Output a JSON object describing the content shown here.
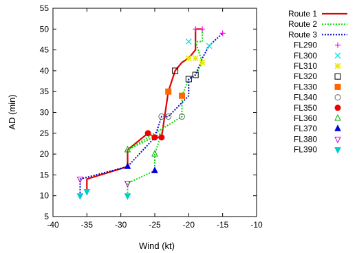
{
  "chart_data": {
    "type": "line",
    "xlabel": "Wind (kt)",
    "ylabel": "AD (min)",
    "xlim": [
      -40,
      -10
    ],
    "ylim": [
      5,
      55
    ],
    "xticks": [
      -40,
      -35,
      -30,
      -25,
      -20,
      -15,
      -10
    ],
    "yticks": [
      5,
      10,
      15,
      20,
      25,
      30,
      35,
      40,
      45,
      50,
      55
    ],
    "legend_position": "right",
    "series": [
      {
        "name": "Route 1",
        "color": "#dd0000",
        "dash": "solid",
        "points": [
          [
            -35,
            11
          ],
          [
            -35,
            14
          ],
          [
            -29,
            17
          ],
          [
            -29,
            21
          ],
          [
            -26,
            25
          ],
          [
            -25,
            24
          ],
          [
            -24,
            24
          ],
          [
            -23,
            35
          ],
          [
            -22,
            40
          ],
          [
            -21,
            42
          ],
          [
            -20,
            43
          ],
          [
            -19,
            45
          ],
          [
            -19,
            50
          ],
          [
            -18,
            50
          ]
        ]
      },
      {
        "name": "Route 2",
        "color": "#00dd00",
        "dash": "dotted",
        "points": [
          [
            -29,
            10
          ],
          [
            -29,
            13
          ],
          [
            -25,
            16
          ],
          [
            -25,
            20
          ],
          [
            -24,
            25
          ],
          [
            -29,
            21
          ],
          [
            -21,
            29
          ],
          [
            -21,
            34
          ],
          [
            -20,
            38
          ],
          [
            -19,
            39
          ],
          [
            -18,
            42
          ],
          [
            -19,
            47
          ],
          [
            -18,
            47
          ],
          [
            -18,
            50
          ]
        ]
      },
      {
        "name": "Route 3",
        "color": "#0000cc",
        "dash": "dotted",
        "points": [
          [
            -36,
            10
          ],
          [
            -36,
            14
          ],
          [
            -29,
            17
          ],
          [
            -25,
            24
          ],
          [
            -24,
            29
          ],
          [
            -23,
            29
          ],
          [
            -20,
            34
          ],
          [
            -20,
            38
          ],
          [
            -19,
            39
          ],
          [
            -18,
            43
          ],
          [
            -17,
            46
          ],
          [
            -15,
            49
          ]
        ]
      }
    ],
    "markers": [
      {
        "name": "FL290",
        "symbol": "plus",
        "color": "#ff00ff",
        "points": [
          [
            -18,
            50
          ],
          [
            -19,
            50
          ],
          [
            -15,
            49
          ]
        ]
      },
      {
        "name": "FL300",
        "symbol": "x",
        "color": "#00dddd",
        "points": [
          [
            -20,
            47
          ],
          [
            -17,
            46
          ]
        ]
      },
      {
        "name": "FL310",
        "symbol": "star",
        "color": "#e8e800",
        "points": [
          [
            -20,
            43
          ],
          [
            -19,
            43
          ],
          [
            -18,
            42
          ]
        ]
      },
      {
        "name": "FL320",
        "symbol": "square-open",
        "color": "#000000",
        "points": [
          [
            -22,
            40
          ],
          [
            -19,
            39
          ],
          [
            -20,
            38
          ]
        ]
      },
      {
        "name": "FL330",
        "symbol": "square-filled",
        "color": "#ff6600",
        "points": [
          [
            -23,
            35
          ],
          [
            -21,
            34
          ]
        ]
      },
      {
        "name": "FL340",
        "symbol": "circle-open",
        "color": "#666666",
        "points": [
          [
            -24,
            29
          ],
          [
            -23,
            29
          ],
          [
            -21,
            29
          ]
        ]
      },
      {
        "name": "FL350",
        "symbol": "circle-filled",
        "color": "#ee0000",
        "points": [
          [
            -26,
            25
          ],
          [
            -25,
            24
          ],
          [
            -24,
            24
          ]
        ]
      },
      {
        "name": "FL360",
        "symbol": "triangle-up-open",
        "color": "#00aa00",
        "points": [
          [
            -29,
            21
          ],
          [
            -25,
            20
          ]
        ]
      },
      {
        "name": "FL370",
        "symbol": "triangle-up-filled",
        "color": "#0000dd",
        "points": [
          [
            -29,
            17
          ],
          [
            -25,
            16
          ]
        ]
      },
      {
        "name": "FL380",
        "symbol": "triangle-down-open",
        "color": "#cc00cc",
        "points": [
          [
            -36,
            14
          ],
          [
            -29,
            13
          ]
        ]
      },
      {
        "name": "FL390",
        "symbol": "triangle-down-filled",
        "color": "#00cccc",
        "points": [
          [
            -36,
            10
          ],
          [
            -35,
            11
          ],
          [
            -29,
            10
          ]
        ]
      }
    ]
  }
}
